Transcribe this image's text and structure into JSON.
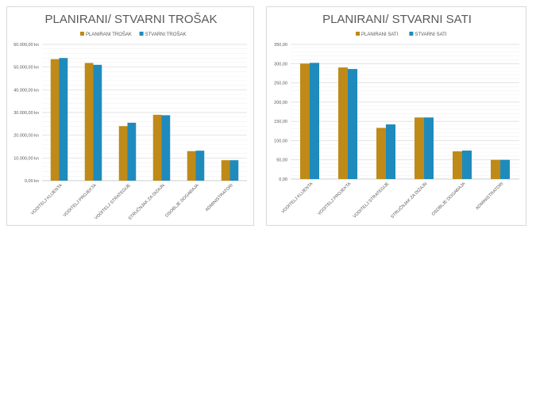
{
  "colors": {
    "planned": "#bf8a17",
    "actual": "#1f8bbd"
  },
  "chart_data": [
    {
      "type": "bar",
      "title": "PLANIRANI/ STVARNI TROŠAK",
      "categories": [
        "VODITELJ KLIJENTA",
        "VODITELJ PROJEKTA",
        "VODITELJ STRATEGIJE",
        "STRUČNJAK ZA DIZAJN",
        "OSOBLJE DOGAĐAJA",
        "ADMINISTRATORI"
      ],
      "series": [
        {
          "name": "PLANIRANI TROŠAK",
          "values": [
            53500,
            51800,
            24000,
            29000,
            13000,
            9000
          ]
        },
        {
          "name": "STVARNI TROŠAK",
          "values": [
            54000,
            51000,
            25500,
            28800,
            13200,
            9000
          ]
        }
      ],
      "ylim": [
        0,
        60000
      ],
      "yticks": [
        0,
        10000,
        20000,
        30000,
        40000,
        50000,
        60000
      ],
      "ytick_labels": [
        "0,00 kn",
        "10.000,00 kn",
        "20.000,00 kn",
        "30.000,00 kn",
        "40.000,00 kn",
        "50.000,00 kn",
        "60.000,00 kn"
      ],
      "legend": "top",
      "grid": true
    },
    {
      "type": "bar",
      "title": "PLANIRANI/ STVARNI SATI",
      "categories": [
        "VODITELJ KLIJENTA",
        "VODITELJ PROJEKTA",
        "VODITELJ STRATEGIJE",
        "STRUČNJAK ZA DIZAJN",
        "OSOBLJE DOGAĐAJA",
        "ADMINISTRATORI"
      ],
      "series": [
        {
          "name": "PLANIRANI SATI",
          "values": [
            300,
            290,
            133,
            160,
            72,
            50
          ]
        },
        {
          "name": "STVARNI SATI",
          "values": [
            302,
            286,
            142,
            160,
            74,
            50
          ]
        }
      ],
      "ylim": [
        0,
        350
      ],
      "yticks": [
        0,
        50,
        100,
        150,
        200,
        250,
        300,
        350
      ],
      "ytick_labels": [
        "0,00",
        "50,00",
        "100,00",
        "150,00",
        "200,00",
        "250,00",
        "300,00",
        "350,00"
      ],
      "legend": "top",
      "grid": true
    }
  ]
}
